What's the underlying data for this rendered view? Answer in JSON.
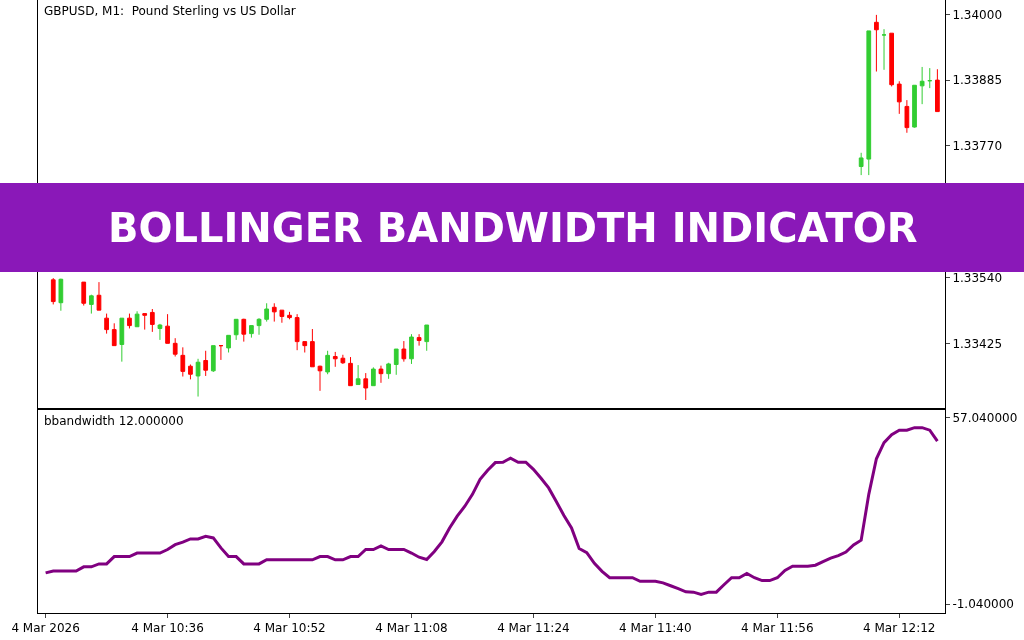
{
  "chart_data": [
    {
      "type": "candlestick",
      "title": "GBPUSD, M1:  Pound Sterling vs US Dollar",
      "annotations": [
        "BOLLINGER BANDWIDTH INDICATOR"
      ],
      "xlim": [
        "2026-03-04T10:19",
        "2026-03-04T12:18"
      ],
      "ylim": [
        1.33312,
        1.34025
      ],
      "yticks": [
        {
          "value": 1.34,
          "label": "1.34000"
        },
        1.33885,
        {
          "value": 1.3377,
          "label": "1.33770"
        },
        {
          "value": 1.3354,
          "label": "1.33540"
        },
        1.33425
      ],
      "tick_labels": "y",
      "x": [
        "2026-03-04T10:21",
        "2026-03-04T10:22",
        "2026-03-04T10:25",
        "2026-03-04T10:26",
        "2026-03-04T10:27",
        "2026-03-04T10:28",
        "2026-03-04T10:29",
        "2026-03-04T10:30",
        "2026-03-04T10:31",
        "2026-03-04T10:32",
        "2026-03-04T10:33",
        "2026-03-04T10:34",
        "2026-03-04T10:35",
        "2026-03-04T10:36",
        "2026-03-04T10:37",
        "2026-03-04T10:38",
        "2026-03-04T10:39",
        "2026-03-04T10:40",
        "2026-03-04T10:41",
        "2026-03-04T10:42",
        "2026-03-04T10:43",
        "2026-03-04T10:44",
        "2026-03-04T10:45",
        "2026-03-04T10:46",
        "2026-03-04T10:47",
        "2026-03-04T10:48",
        "2026-03-04T10:49",
        "2026-03-04T10:50",
        "2026-03-04T10:51",
        "2026-03-04T10:52",
        "2026-03-04T10:53",
        "2026-03-04T10:54",
        "2026-03-04T10:55",
        "2026-03-04T10:56",
        "2026-03-04T10:57",
        "2026-03-04T10:58",
        "2026-03-04T10:59",
        "2026-03-04T11:00",
        "2026-03-04T11:01",
        "2026-03-04T11:02",
        "2026-03-04T11:03",
        "2026-03-04T11:04",
        "2026-03-04T11:05",
        "2026-03-04T11:06",
        "2026-03-04T11:07",
        "2026-03-04T11:08",
        "2026-03-04T11:09",
        "2026-03-04T11:10",
        "2026-03-04T12:07",
        "2026-03-04T12:08",
        "2026-03-04T12:09",
        "2026-03-04T12:10",
        "2026-03-04T12:11",
        "2026-03-04T12:12",
        "2026-03-04T12:13",
        "2026-03-04T12:14",
        "2026-03-04T12:15",
        "2026-03-04T12:16",
        "2026-03-04T12:17"
      ],
      "ohlc": [
        [
          1.33536,
          1.33539,
          1.33493,
          1.33498
        ],
        [
          1.33496,
          1.33538,
          1.33482,
          1.33537
        ],
        [
          1.33532,
          1.33532,
          1.33491,
          1.33495
        ],
        [
          1.33493,
          1.3351,
          1.33477,
          1.33508
        ],
        [
          1.33509,
          1.33532,
          1.33483,
          1.33483
        ],
        [
          1.33469,
          1.33477,
          1.33442,
          1.33449
        ],
        [
          1.33449,
          1.3346,
          1.33421,
          1.33421
        ],
        [
          1.33423,
          1.33469,
          1.33393,
          1.33469
        ],
        [
          1.33469,
          1.33477,
          1.33451,
          1.33456
        ],
        [
          1.33454,
          1.33481,
          1.33454,
          1.33476
        ],
        [
          1.33477,
          1.33477,
          1.33449,
          1.33474
        ],
        [
          1.33479,
          1.33485,
          1.33445,
          1.33458
        ],
        [
          1.33451,
          1.33459,
          1.33431,
          1.33457
        ],
        [
          1.33455,
          1.33476,
          1.33425,
          1.33425
        ],
        [
          1.33425,
          1.33434,
          1.33402,
          1.33406
        ],
        [
          1.33404,
          1.33418,
          1.33367,
          1.33376
        ],
        [
          1.33385,
          1.33388,
          1.33362,
          1.33371
        ],
        [
          1.33368,
          1.33398,
          1.33332,
          1.33392
        ],
        [
          1.33395,
          1.33412,
          1.33368,
          1.33378
        ],
        [
          1.33377,
          1.33421,
          1.33375,
          1.33421
        ],
        [
          1.33421,
          1.33421,
          1.33396,
          1.33421
        ],
        [
          1.33417,
          1.33439,
          1.33409,
          1.33439
        ],
        [
          1.3344,
          1.33467,
          1.33431,
          1.33467
        ],
        [
          1.33467,
          1.33468,
          1.33428,
          1.33441
        ],
        [
          1.33442,
          1.33456,
          1.33435,
          1.33456
        ],
        [
          1.33456,
          1.33469,
          1.3344,
          1.33467
        ],
        [
          1.33467,
          1.33495,
          1.33463,
          1.33485
        ],
        [
          1.33488,
          1.33495,
          1.33463,
          1.3348
        ],
        [
          1.33483,
          1.33483,
          1.33461,
          1.33472
        ],
        [
          1.33474,
          1.3348,
          1.33467,
          1.3347
        ],
        [
          1.3347,
          1.33476,
          1.33413,
          1.33428
        ],
        [
          1.33428,
          1.33428,
          1.33409,
          1.33421
        ],
        [
          1.33428,
          1.3345,
          1.33384,
          1.33384
        ],
        [
          1.33385,
          1.33386,
          1.33342,
          1.33377
        ],
        [
          1.33375,
          1.33412,
          1.33371,
          1.33404
        ],
        [
          1.33402,
          1.3341,
          1.33384,
          1.33398
        ],
        [
          1.33399,
          1.33405,
          1.33389,
          1.33391
        ],
        [
          1.3339,
          1.33401,
          1.33351,
          1.33351
        ],
        [
          1.33353,
          1.33387,
          1.33353,
          1.33363
        ],
        [
          1.33363,
          1.33373,
          1.33326,
          1.33347
        ],
        [
          1.33351,
          1.33383,
          1.33351,
          1.3338
        ],
        [
          1.3338,
          1.33386,
          1.33356,
          1.33372
        ],
        [
          1.33372,
          1.33391,
          1.33363,
          1.33389
        ],
        [
          1.33388,
          1.33415,
          1.3337,
          1.33415
        ],
        [
          1.33415,
          1.33429,
          1.33393,
          1.33398
        ],
        [
          1.33398,
          1.33441,
          1.33389,
          1.33436
        ],
        [
          1.33435,
          1.33441,
          1.33421,
          1.3343
        ],
        [
          1.33428,
          1.33457,
          1.33412,
          1.33457
        ],
        [
          1.33734,
          1.33758,
          1.33719,
          1.33749
        ],
        [
          1.33747,
          1.33971,
          1.33719,
          1.33971
        ],
        [
          1.33986,
          1.33999,
          1.339,
          1.33973
        ],
        [
          1.33964,
          1.33974,
          1.33903,
          1.33964
        ],
        [
          1.33967,
          1.33967,
          1.33874,
          1.33877
        ],
        [
          1.33878,
          1.33883,
          1.33826,
          1.33847
        ],
        [
          1.33839,
          1.3385,
          1.33793,
          1.33802
        ],
        [
          1.33803,
          1.33876,
          1.33802,
          1.33876
        ],
        [
          1.33875,
          1.33908,
          1.33843,
          1.33883
        ],
        [
          1.33884,
          1.33906,
          1.33871,
          1.33884
        ],
        [
          1.33885,
          1.33904,
          1.3383,
          1.3383
        ]
      ],
      "colors": [
        "#ff0000",
        "#32cd32",
        "#ff0000",
        "#32cd32",
        "#ff0000",
        "#ff0000",
        "#ff0000",
        "#32cd32",
        "#ff0000",
        "#32cd32",
        "#ff0000",
        "#ff0000",
        "#32cd32",
        "#ff0000",
        "#ff0000",
        "#ff0000",
        "#ff0000",
        "#32cd32",
        "#ff0000",
        "#32cd32",
        "#ff0000",
        "#32cd32",
        "#32cd32",
        "#ff0000",
        "#32cd32",
        "#32cd32",
        "#32cd32",
        "#ff0000",
        "#ff0000",
        "#ff0000",
        "#ff0000",
        "#ff0000",
        "#ff0000",
        "#ff0000",
        "#32cd32",
        "#ff0000",
        "#ff0000",
        "#ff0000",
        "#32cd32",
        "#ff0000",
        "#32cd32",
        "#ff0000",
        "#32cd32",
        "#32cd32",
        "#ff0000",
        "#32cd32",
        "#ff0000",
        "#32cd32",
        "#32cd32",
        "#32cd32",
        "#ff0000",
        "#32cd32",
        "#ff0000",
        "#ff0000",
        "#ff0000",
        "#32cd32",
        "#32cd32",
        "#32cd32",
        "#ff0000"
      ]
    },
    {
      "type": "line",
      "title": "bbandwidth 12.000000",
      "xlim": [
        "2026-03-04T10:19",
        "2026-03-04T12:18"
      ],
      "xticks": [
        {
          "value": "2026-03-04T10:20",
          "label": "4 Mar 2026"
        },
        {
          "value": "2026-03-04T10:36",
          "label": "4 Mar 10:36"
        },
        {
          "value": "2026-03-04T10:52",
          "label": "4 Mar 10:52"
        },
        {
          "value": "2026-03-04T11:08",
          "label": "4 Mar 11:08"
        },
        {
          "value": "2026-03-04T11:24",
          "label": "4 Mar 11:24"
        },
        {
          "value": "2026-03-04T11:40",
          "label": "4 Mar 11:40"
        },
        {
          "value": "2026-03-04T11:56",
          "label": "4 Mar 11:56"
        },
        {
          "value": "2026-03-04T12:12",
          "label": "4 Mar 12:12"
        }
      ],
      "ylim": [
        -3.8,
        59.5
      ],
      "yticks": [
        {
          "value": 57.04,
          "label": "57.040000"
        },
        {
          "value": -1.04,
          "label": "-1.040000"
        }
      ],
      "series": [
        {
          "color": "#800080",
          "x": [
            "2026-03-04T10:20",
            "2026-03-04T10:21",
            "2026-03-04T10:24",
            "2026-03-04T10:25",
            "2026-03-04T10:26",
            "2026-03-04T10:27",
            "2026-03-04T10:28",
            "2026-03-04T10:29",
            "2026-03-04T10:31",
            "2026-03-04T10:32",
            "2026-03-04T10:35",
            "2026-03-04T10:36",
            "2026-03-04T10:37",
            "2026-03-04T10:38",
            "2026-03-04T10:39",
            "2026-03-04T10:40",
            "2026-03-04T10:41",
            "2026-03-04T10:42",
            "2026-03-04T10:43",
            "2026-03-04T10:44",
            "2026-03-04T10:45",
            "2026-03-04T10:46",
            "2026-03-04T10:48",
            "2026-03-04T10:49",
            "2026-03-04T10:55",
            "2026-03-04T10:56",
            "2026-03-04T10:57",
            "2026-03-04T10:58",
            "2026-03-04T10:59",
            "2026-03-04T11:00",
            "2026-03-04T11:01",
            "2026-03-04T11:02",
            "2026-03-04T11:03",
            "2026-03-04T11:04",
            "2026-03-04T11:05",
            "2026-03-04T11:07",
            "2026-03-04T11:08",
            "2026-03-04T11:09",
            "2026-03-04T11:10",
            "2026-03-04T11:11",
            "2026-03-04T11:12",
            "2026-03-04T11:13",
            "2026-03-04T11:14",
            "2026-03-04T11:15",
            "2026-03-04T11:16",
            "2026-03-04T11:17",
            "2026-03-04T11:18",
            "2026-03-04T11:19",
            "2026-03-04T11:20",
            "2026-03-04T11:21",
            "2026-03-04T11:22",
            "2026-03-04T11:23",
            "2026-03-04T11:24",
            "2026-03-04T11:25",
            "2026-03-04T11:26",
            "2026-03-04T11:27",
            "2026-03-04T11:28",
            "2026-03-04T11:29",
            "2026-03-04T11:30",
            "2026-03-04T11:31",
            "2026-03-04T11:32",
            "2026-03-04T11:33",
            "2026-03-04T11:34",
            "2026-03-04T11:37",
            "2026-03-04T11:38",
            "2026-03-04T11:40",
            "2026-03-04T11:41",
            "2026-03-04T11:42",
            "2026-03-04T11:43",
            "2026-03-04T11:44",
            "2026-03-04T11:45",
            "2026-03-04T11:46",
            "2026-03-04T11:47",
            "2026-03-04T11:48",
            "2026-03-04T11:49",
            "2026-03-04T11:50",
            "2026-03-04T11:51",
            "2026-03-04T11:52",
            "2026-03-04T11:53",
            "2026-03-04T11:54",
            "2026-03-04T11:55",
            "2026-03-04T11:56",
            "2026-03-04T11:57",
            "2026-03-04T11:58",
            "2026-03-04T12:00",
            "2026-03-04T12:01",
            "2026-03-04T12:02",
            "2026-03-04T12:03",
            "2026-03-04T12:04",
            "2026-03-04T12:05",
            "2026-03-04T12:06",
            "2026-03-04T12:07",
            "2026-03-04T12:08",
            "2026-03-04T12:09",
            "2026-03-04T12:10",
            "2026-03-04T12:11",
            "2026-03-04T12:12",
            "2026-03-04T12:13",
            "2026-03-04T12:14",
            "2026-03-04T12:15",
            "2026-03-04T12:16",
            "2026-03-04T12:17"
          ],
          "values": [
            8.7,
            9.3,
            9.3,
            10.6,
            10.6,
            11.5,
            11.5,
            13.8,
            13.8,
            14.9,
            14.9,
            16.0,
            17.5,
            18.3,
            19.3,
            19.3,
            20.1,
            19.6,
            16.5,
            13.8,
            13.8,
            11.5,
            11.5,
            12.8,
            12.8,
            13.8,
            13.8,
            12.8,
            12.8,
            13.8,
            13.8,
            16.0,
            16.0,
            17.1,
            16.0,
            16.0,
            14.9,
            13.6,
            12.9,
            15.4,
            18.4,
            22.7,
            26.4,
            29.5,
            33.2,
            37.9,
            40.7,
            43.1,
            43.2,
            44.5,
            43.2,
            43.2,
            41.0,
            38.2,
            35.2,
            31.0,
            26.6,
            22.7,
            16.3,
            15.0,
            11.7,
            9.2,
            7.2,
            7.2,
            6.1,
            6.1,
            5.6,
            4.7,
            3.8,
            2.8,
            2.7,
            2.0,
            2.7,
            2.7,
            5.0,
            7.2,
            7.2,
            8.5,
            7.2,
            6.3,
            6.3,
            7.2,
            9.5,
            10.8,
            10.8,
            11.1,
            12.2,
            13.3,
            14.1,
            15.2,
            17.4,
            18.9,
            33.2,
            44.3,
            49.3,
            51.8,
            53.2,
            53.2,
            54.0,
            54.0,
            53.2,
            49.8
          ]
        }
      ]
    }
  ]
}
